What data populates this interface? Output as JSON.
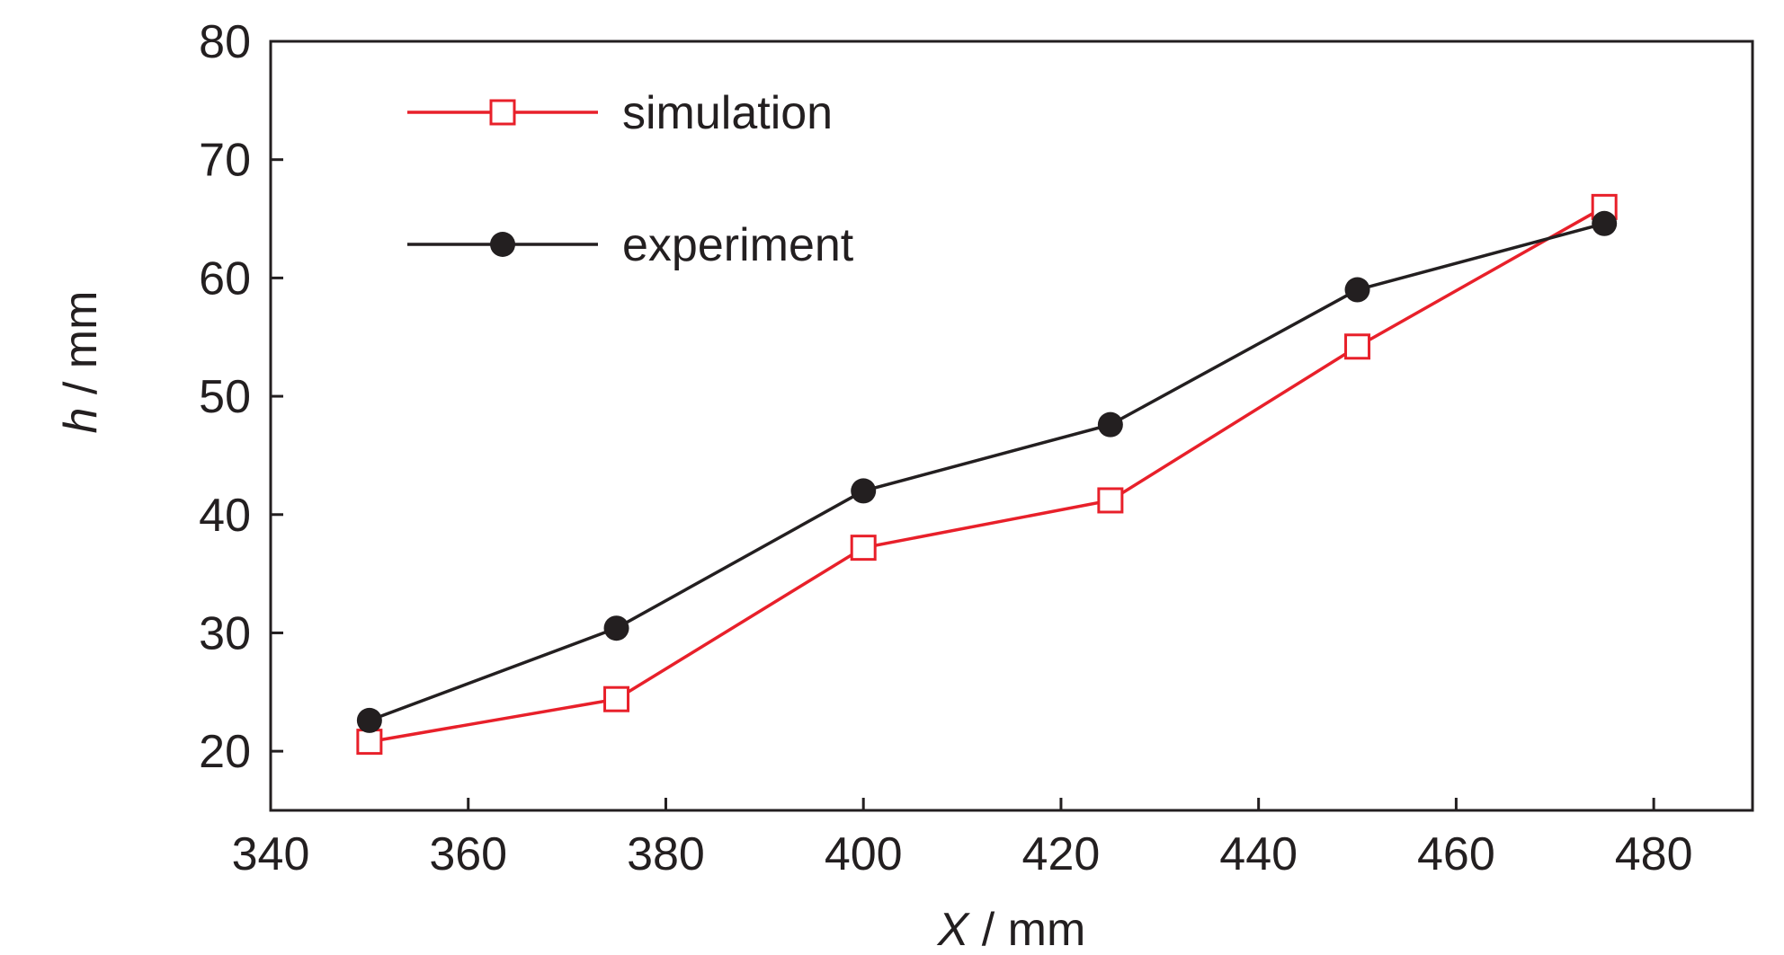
{
  "chart_data": {
    "type": "line",
    "title": "",
    "xlabel": {
      "var": "X",
      "unit": " / mm"
    },
    "ylabel": {
      "var": "h",
      "unit": " / mm"
    },
    "xlim": [
      340,
      490
    ],
    "ylim": [
      15,
      80
    ],
    "xticks": [
      340,
      360,
      380,
      400,
      420,
      440,
      460,
      480
    ],
    "yticks": [
      20,
      30,
      40,
      50,
      60,
      70,
      80
    ],
    "legend_position": "top-left",
    "grid": false,
    "series": [
      {
        "name": "simulation",
        "color": "#e8202a",
        "marker": "open-square",
        "x": [
          350,
          375,
          400,
          425,
          450,
          475
        ],
        "y": [
          20.8,
          24.4,
          37.2,
          41.2,
          54.2,
          66.0
        ]
      },
      {
        "name": "experiment",
        "color": "#231f20",
        "marker": "filled-circle",
        "x": [
          350,
          375,
          400,
          425,
          450,
          475
        ],
        "y": [
          22.6,
          30.4,
          42.0,
          47.6,
          59.0,
          64.6
        ]
      }
    ]
  }
}
